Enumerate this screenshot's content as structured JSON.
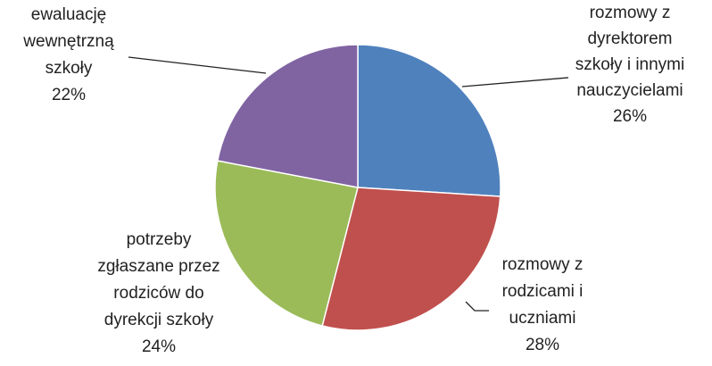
{
  "chart_data": {
    "type": "pie",
    "categories": [
      "rozmowy z\ndyrektorem\nszkoły i innymi\nnauczycielami",
      "rozmowy z\nrodzicami i\nuczniami",
      "potrzeby\nzgłaszane przez\nrodziców do\ndyrekcji szkoły",
      "ewaluację\nwewnętrzną\nszkoły"
    ],
    "values": [
      26,
      28,
      24,
      22
    ],
    "value_labels": [
      "26%",
      "28%",
      "24%",
      "22%"
    ],
    "colors": [
      "#4f81bd",
      "#c0504d",
      "#9bbb59",
      "#8064a2"
    ]
  }
}
